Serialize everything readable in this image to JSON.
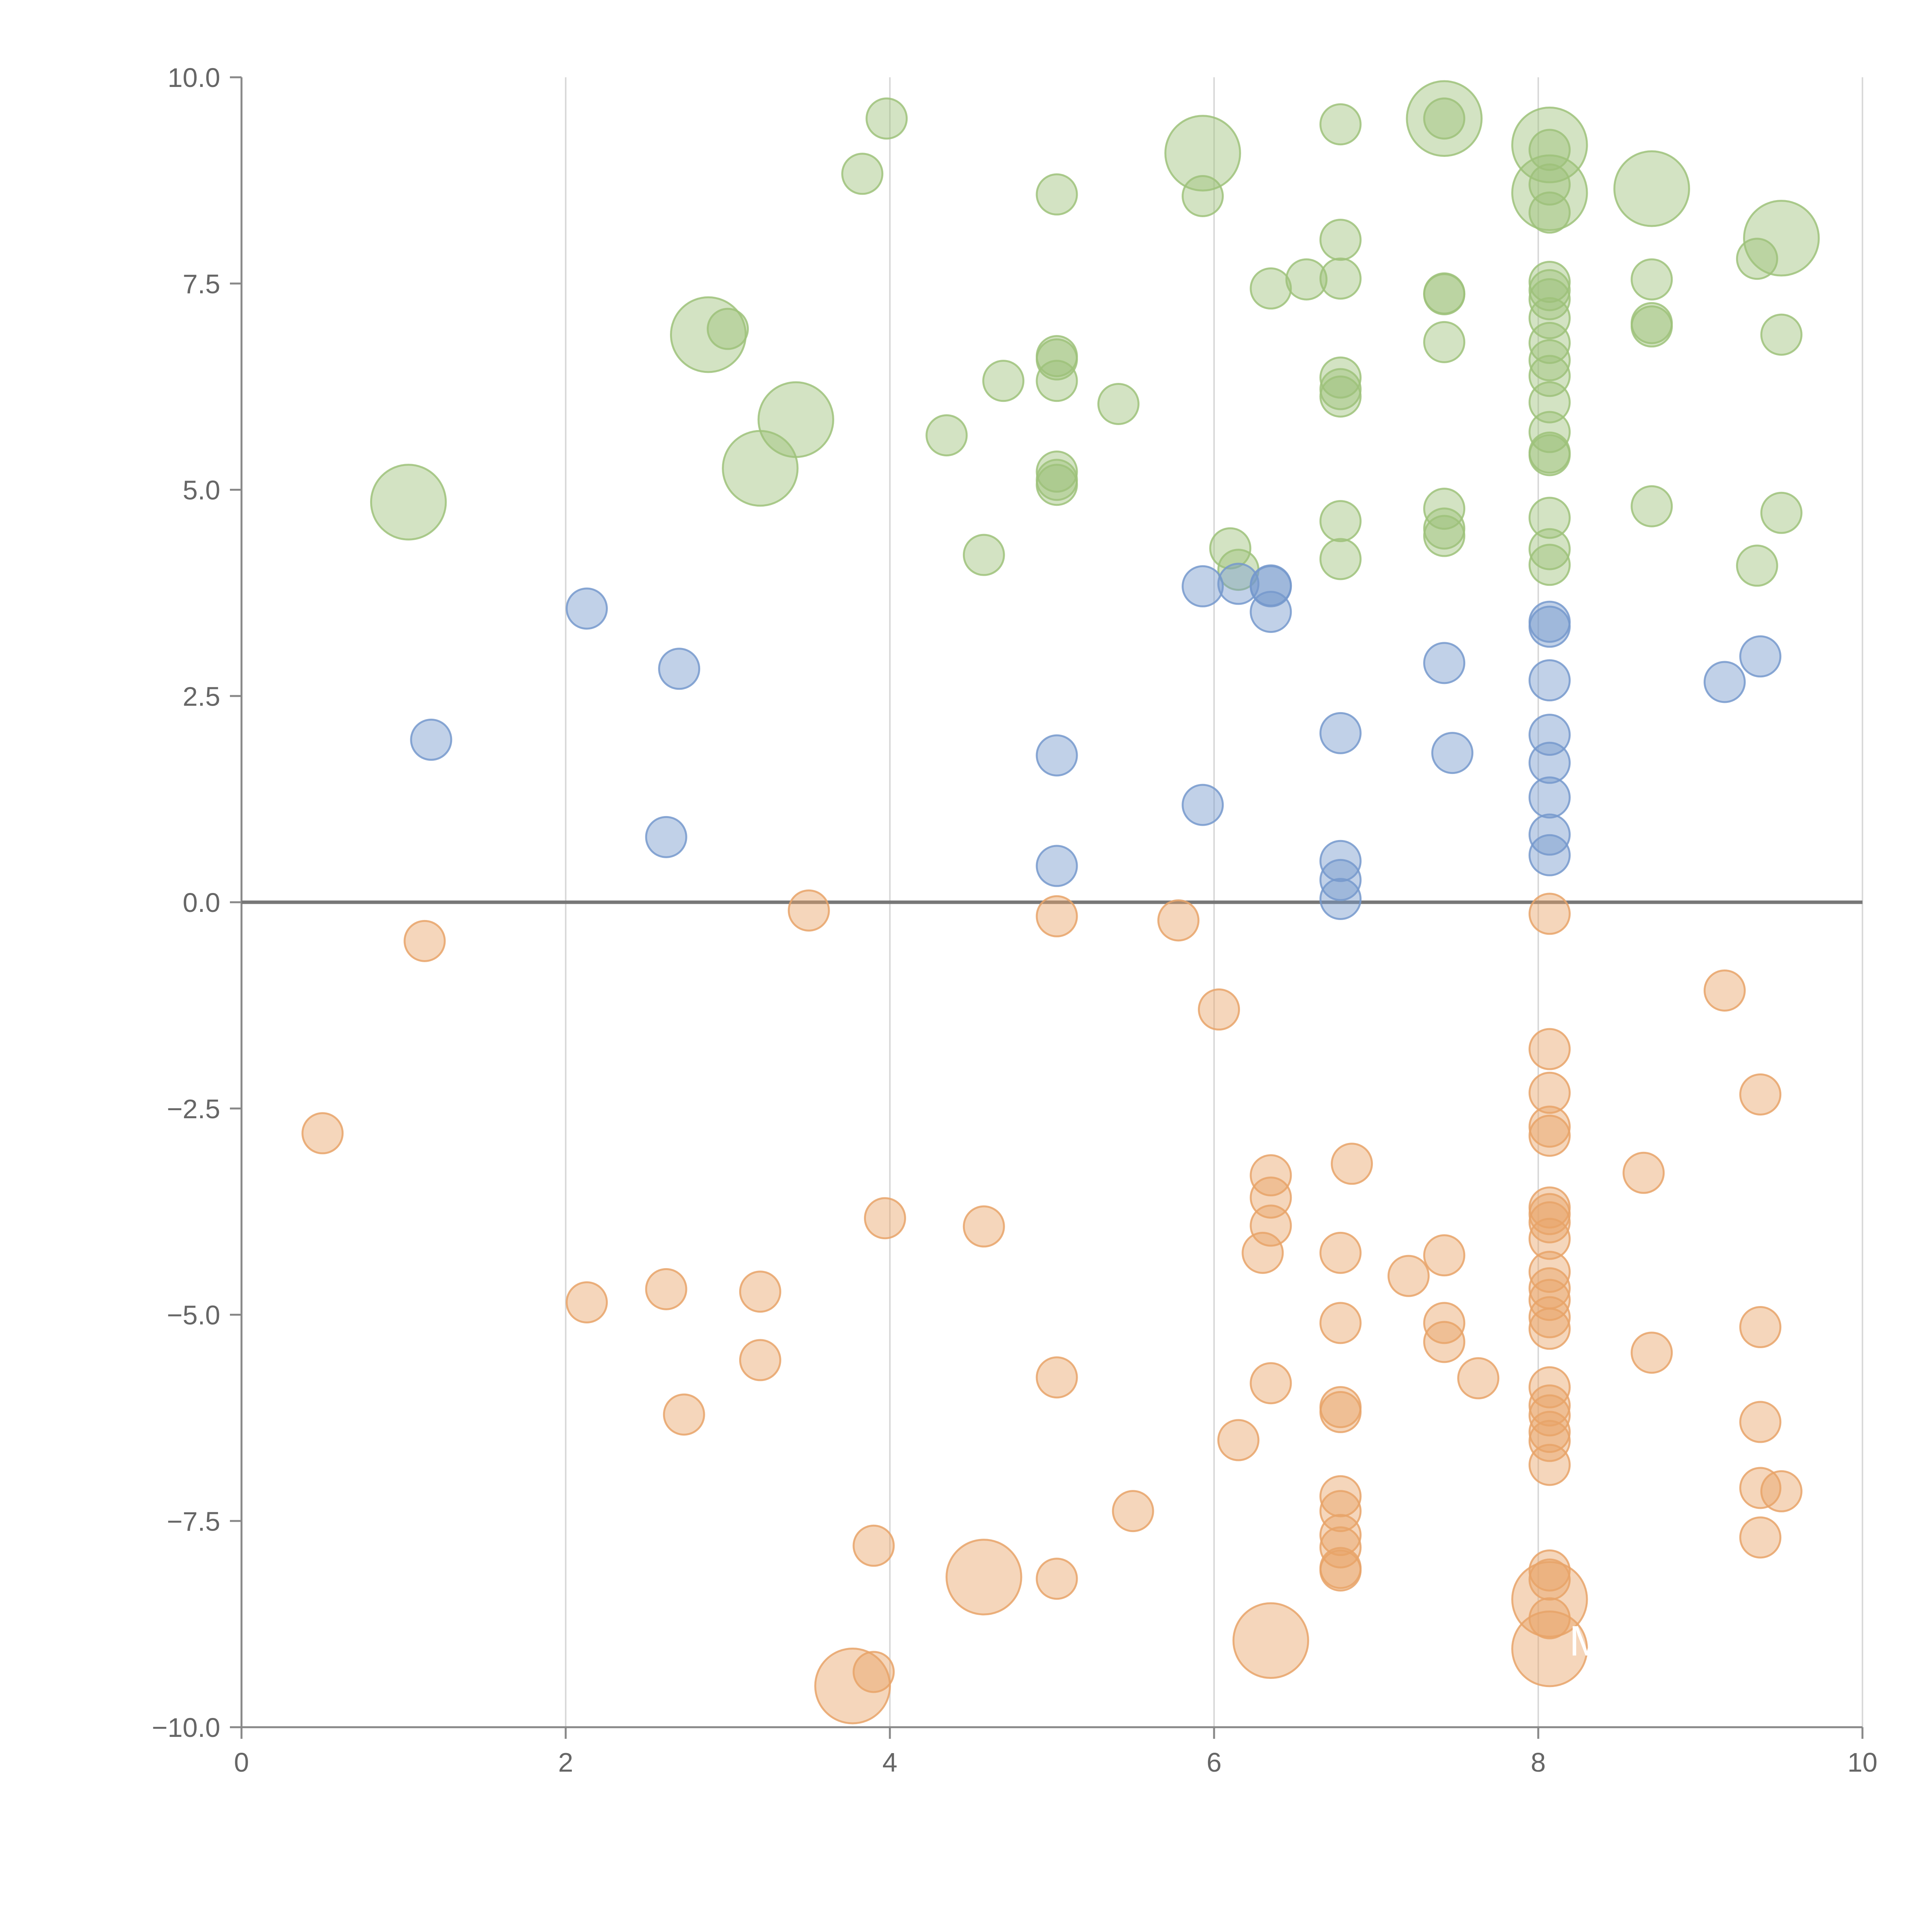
{
  "chart_data": {
    "type": "scatter",
    "title": "",
    "xlabel": "",
    "ylabel": "",
    "xlim": [
      0,
      10
    ],
    "ylim": [
      -10,
      10
    ],
    "x_ticks": [
      "0",
      "2",
      "4",
      "6",
      "8",
      "10"
    ],
    "y_ticks": [
      "10.0",
      "7.5",
      "5.0",
      "2.5",
      "0.0",
      "−2.5",
      "−5.0",
      "−7.5",
      "−10.0"
    ],
    "x_tick_values": [
      0,
      2,
      4,
      6,
      8,
      10
    ],
    "y_tick_values": [
      10,
      7.5,
      5,
      2.5,
      0,
      -2.5,
      -5,
      -7.5,
      -10
    ],
    "grid": "vertical lines at x ticks",
    "zero_line": true,
    "series": [
      {
        "name": "green",
        "color": "#9dc27a",
        "points": [
          [
            3.98,
            9.5
          ],
          [
            3.83,
            8.83
          ],
          [
            5.03,
            8.58
          ],
          [
            5.93,
            8.56
          ],
          [
            6.78,
            9.43
          ],
          [
            7.42,
            9.5
          ],
          [
            6.78,
            8.03
          ],
          [
            6.78,
            7.56
          ],
          [
            6.57,
            7.55
          ],
          [
            6.35,
            7.44
          ],
          [
            7.42,
            7.38
          ],
          [
            7.42,
            7.37
          ],
          [
            8.07,
            7.52
          ],
          [
            8.07,
            7.42
          ],
          [
            8.07,
            7.31
          ],
          [
            8.07,
            7.08
          ],
          [
            8.7,
            7.55
          ],
          [
            8.7,
            7.02
          ],
          [
            8.7,
            6.98
          ],
          [
            9.35,
            7.8
          ],
          [
            9.5,
            6.88
          ],
          [
            3.0,
            6.95
          ],
          [
            4.7,
            6.32
          ],
          [
            5.03,
            6.62
          ],
          [
            5.03,
            6.58
          ],
          [
            5.03,
            6.32
          ],
          [
            5.41,
            6.04
          ],
          [
            4.35,
            5.66
          ],
          [
            6.78,
            6.36
          ],
          [
            6.78,
            6.22
          ],
          [
            6.78,
            6.13
          ],
          [
            7.42,
            6.79
          ],
          [
            8.07,
            6.78
          ],
          [
            8.07,
            6.57
          ],
          [
            8.07,
            6.38
          ],
          [
            8.07,
            6.06
          ],
          [
            8.07,
            5.7
          ],
          [
            8.07,
            5.45
          ],
          [
            8.07,
            5.42
          ],
          [
            5.03,
            5.22
          ],
          [
            5.03,
            5.12
          ],
          [
            5.03,
            5.06
          ],
          [
            4.58,
            4.21
          ],
          [
            6.1,
            4.29
          ],
          [
            6.15,
            4.03
          ],
          [
            6.78,
            4.62
          ],
          [
            6.78,
            4.16
          ],
          [
            7.42,
            4.77
          ],
          [
            7.42,
            4.53
          ],
          [
            7.42,
            4.44
          ],
          [
            8.07,
            4.66
          ],
          [
            8.07,
            4.28
          ],
          [
            8.07,
            4.09
          ],
          [
            8.7,
            4.8
          ],
          [
            9.35,
            4.08
          ],
          [
            9.5,
            4.72
          ],
          [
            8.07,
            9.12
          ],
          [
            8.07,
            8.7
          ],
          [
            8.07,
            8.36
          ]
        ]
      },
      {
        "name": "blue",
        "color": "#7699cc",
        "points": [
          [
            2.13,
            3.56
          ],
          [
            1.17,
            1.97
          ],
          [
            2.7,
            2.83
          ],
          [
            2.62,
            0.79
          ],
          [
            5.03,
            1.78
          ],
          [
            5.03,
            0.44
          ],
          [
            5.93,
            3.83
          ],
          [
            6.15,
            3.86
          ],
          [
            6.35,
            3.84
          ],
          [
            6.35,
            3.83
          ],
          [
            6.35,
            3.52
          ],
          [
            5.93,
            1.18
          ],
          [
            6.78,
            2.05
          ],
          [
            6.78,
            0.5
          ],
          [
            6.78,
            0.27
          ],
          [
            6.78,
            0.04
          ],
          [
            7.42,
            2.9
          ],
          [
            7.47,
            1.81
          ],
          [
            8.07,
            3.4
          ],
          [
            8.07,
            3.34
          ],
          [
            8.07,
            2.69
          ],
          [
            8.07,
            2.03
          ],
          [
            8.07,
            1.69
          ],
          [
            8.07,
            1.27
          ],
          [
            8.07,
            0.82
          ],
          [
            8.07,
            0.57
          ],
          [
            9.15,
            2.67
          ],
          [
            9.37,
            2.98
          ]
        ]
      },
      {
        "name": "orange",
        "color": "#e8a368",
        "points": [
          [
            1.13,
            -0.47
          ],
          [
            0.5,
            -2.8
          ],
          [
            3.5,
            -0.1
          ],
          [
            5.03,
            -0.17
          ],
          [
            5.78,
            -0.22
          ],
          [
            6.03,
            -1.3
          ],
          [
            8.07,
            -0.14
          ],
          [
            9.15,
            -1.07
          ],
          [
            9.37,
            -2.33
          ],
          [
            8.07,
            -1.78
          ],
          [
            8.07,
            -2.31
          ],
          [
            8.07,
            -2.72
          ],
          [
            8.07,
            -2.83
          ],
          [
            8.65,
            -3.28
          ],
          [
            6.85,
            -3.17
          ],
          [
            6.35,
            -3.31
          ],
          [
            6.35,
            -3.58
          ],
          [
            6.35,
            -3.92
          ],
          [
            6.3,
            -4.25
          ],
          [
            6.78,
            -4.25
          ],
          [
            7.2,
            -4.53
          ],
          [
            7.42,
            -4.28
          ],
          [
            7.42,
            -5.1
          ],
          [
            7.42,
            -5.33
          ],
          [
            7.63,
            -5.77
          ],
          [
            8.07,
            -3.7
          ],
          [
            8.07,
            -3.78
          ],
          [
            8.07,
            -3.88
          ],
          [
            8.07,
            -4.08
          ],
          [
            8.07,
            -4.48
          ],
          [
            8.07,
            -4.68
          ],
          [
            8.07,
            -4.82
          ],
          [
            8.07,
            -5.03
          ],
          [
            8.07,
            -5.17
          ],
          [
            8.07,
            -5.88
          ],
          [
            8.07,
            -6.1
          ],
          [
            8.07,
            -6.22
          ],
          [
            8.07,
            -6.42
          ],
          [
            8.07,
            -6.53
          ],
          [
            8.07,
            -6.82
          ],
          [
            8.7,
            -5.46
          ],
          [
            9.37,
            -5.15
          ],
          [
            9.37,
            -6.3
          ],
          [
            9.37,
            -7.1
          ],
          [
            9.5,
            -7.14
          ],
          [
            9.37,
            -7.7
          ],
          [
            3.97,
            -3.83
          ],
          [
            4.58,
            -3.93
          ],
          [
            2.13,
            -4.85
          ],
          [
            2.62,
            -4.69
          ],
          [
            3.2,
            -4.72
          ],
          [
            3.2,
            -5.55
          ],
          [
            2.73,
            -6.21
          ],
          [
            5.03,
            -5.76
          ],
          [
            6.35,
            -5.83
          ],
          [
            6.78,
            -5.1
          ],
          [
            6.78,
            -6.12
          ],
          [
            6.78,
            -6.18
          ],
          [
            6.15,
            -6.52
          ],
          [
            5.5,
            -7.38
          ],
          [
            6.78,
            -7.2
          ],
          [
            6.78,
            -7.38
          ],
          [
            6.78,
            -7.67
          ],
          [
            6.78,
            -7.82
          ],
          [
            6.78,
            -8.07
          ],
          [
            6.78,
            -8.1
          ],
          [
            3.9,
            -7.8
          ],
          [
            5.03,
            -8.2
          ],
          [
            3.9,
            -9.33
          ],
          [
            8.07,
            -8.1
          ],
          [
            8.07,
            -8.21
          ],
          [
            8.07,
            -8.68
          ]
        ]
      }
    ],
    "large_points": [
      {
        "series": "green",
        "x": 1.03,
        "y": 4.85,
        "size": 3
      },
      {
        "series": "green",
        "x": 2.88,
        "y": 6.88,
        "size": 3
      },
      {
        "series": "green",
        "x": 3.42,
        "y": 5.85,
        "size": 3
      },
      {
        "series": "green",
        "x": 3.2,
        "y": 5.26,
        "size": 3
      },
      {
        "series": "green",
        "x": 5.93,
        "y": 9.08,
        "size": 3
      },
      {
        "series": "green",
        "x": 7.42,
        "y": 9.5,
        "size": 3
      },
      {
        "series": "green",
        "x": 8.07,
        "y": 9.18,
        "size": 3
      },
      {
        "series": "green",
        "x": 8.07,
        "y": 8.6,
        "size": 3
      },
      {
        "series": "green",
        "x": 8.7,
        "y": 8.65,
        "size": 3
      },
      {
        "series": "green",
        "x": 9.5,
        "y": 8.05,
        "size": 3
      },
      {
        "series": "orange",
        "x": 4.58,
        "y": -8.18,
        "size": 3
      },
      {
        "series": "orange",
        "x": 3.77,
        "y": -9.5,
        "size": 3
      },
      {
        "series": "orange",
        "x": 6.35,
        "y": -8.95,
        "size": 3
      },
      {
        "series": "orange",
        "x": 8.07,
        "y": -8.45,
        "size": 3
      },
      {
        "series": "orange",
        "x": 8.07,
        "y": -9.05,
        "size": 3
      }
    ],
    "annotations": [
      {
        "text": "M",
        "x": 8.3,
        "y": -9.13
      }
    ]
  }
}
